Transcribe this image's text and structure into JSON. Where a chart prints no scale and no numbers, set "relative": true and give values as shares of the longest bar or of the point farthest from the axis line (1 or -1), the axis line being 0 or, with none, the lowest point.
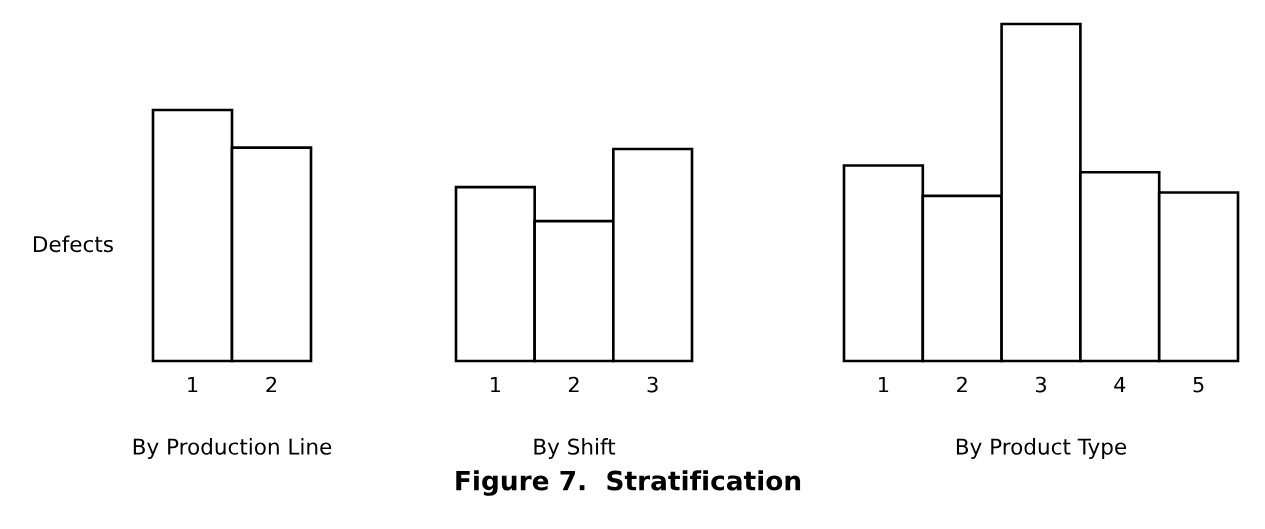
{
  "chart_data": [
    {
      "type": "bar",
      "relative": true,
      "ylabel": "Defects",
      "xlabel": "By Production Line",
      "categories": [
        "1",
        "2"
      ],
      "values": [
        1,
        0.85
      ],
      "color": "#ffffff"
    },
    {
      "type": "bar",
      "relative": true,
      "xlabel": "By Shift",
      "categories": [
        "1",
        "2",
        "3"
      ],
      "values": [
        0.82,
        0.66,
        1
      ],
      "color": "#ffffff",
      "annotations": [
        "Figure 7.  Stratification"
      ]
    },
    {
      "type": "bar",
      "relative": true,
      "xlabel": "By Product Type",
      "categories": [
        "1",
        "2",
        "3",
        "4",
        "5"
      ],
      "values": [
        0.58,
        0.49,
        1,
        0.56,
        0.5
      ],
      "color": "#ffffff"
    }
  ]
}
